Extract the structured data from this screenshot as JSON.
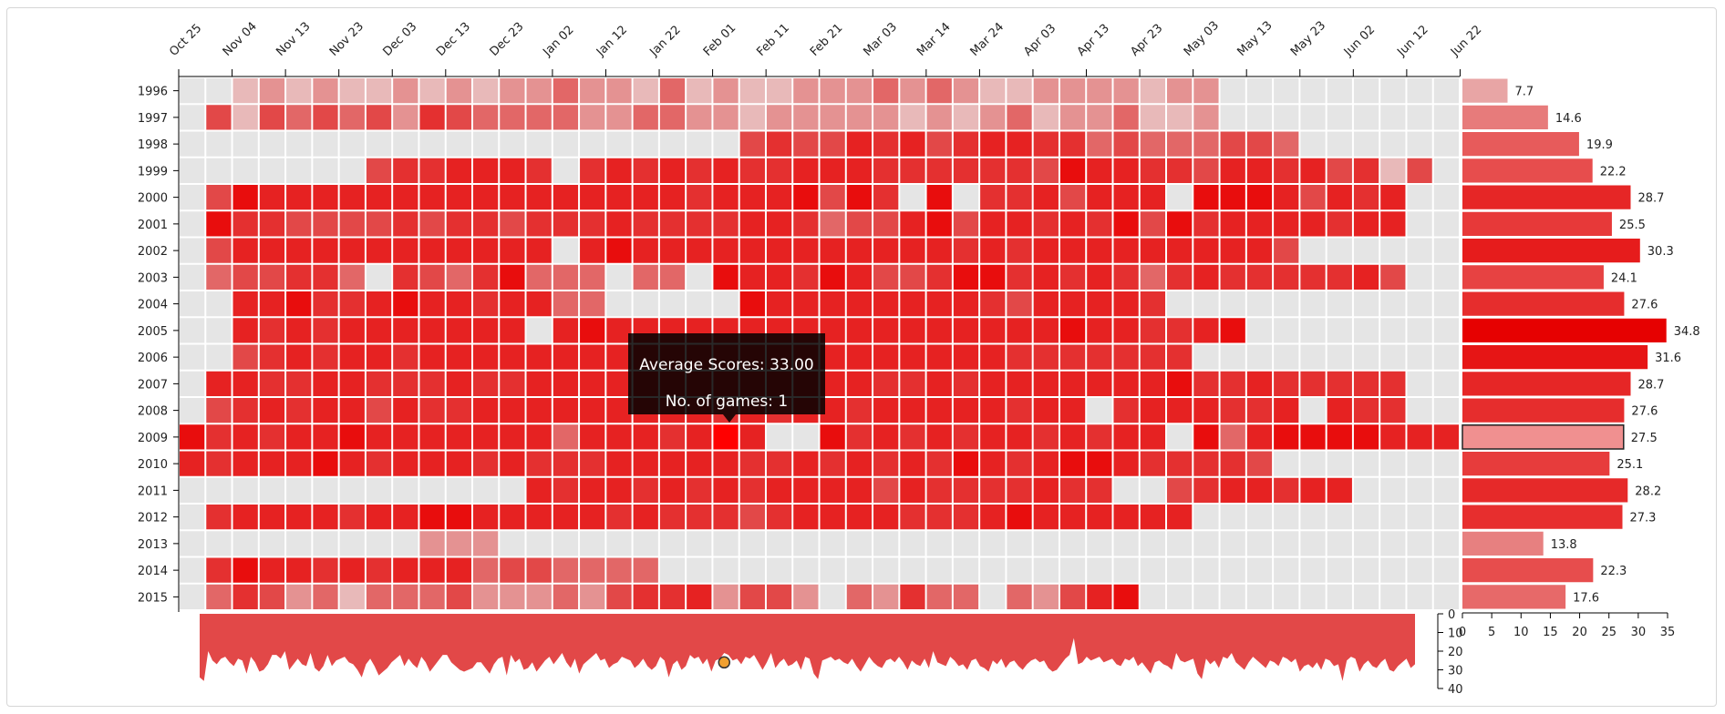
{
  "chart_data": {
    "type": "heatmap",
    "x_ticks": [
      "Oct 25",
      "Nov 04",
      "Nov 13",
      "Nov 23",
      "Dec 03",
      "Dec 13",
      "Dec 23",
      "Jan 02",
      "Jan 12",
      "Jan 22",
      "Feb 01",
      "Feb 11",
      "Feb 21",
      "Mar 03",
      "Mar 14",
      "Mar 24",
      "Apr 03",
      "Apr 13",
      "Apr 23",
      "May 03",
      "May 13",
      "May 23",
      "Jun 02",
      "Jun 12",
      "Jun 22"
    ],
    "years": [
      "1996",
      "1997",
      "1998",
      "1999",
      "2000",
      "2001",
      "2002",
      "2003",
      "2004",
      "2005",
      "2006",
      "2007",
      "2008",
      "2009",
      "2010",
      "2011",
      "2012",
      "2013",
      "2014",
      "2015"
    ],
    "weeks_per_row": 48,
    "max_score": 35,
    "empty_color": "#e5e5e5",
    "cell_colors": [
      "#e5e5e5",
      "#e8b9b9",
      "#e49292",
      "#e26767",
      "#e24848",
      "#e43030",
      "#e62222",
      "#e80d0d"
    ],
    "rows": [
      {
        "cells": "001212112121223221312112223232112222122000000000",
        "avg": 7.7
      },
      {
        "cells": "041434342543333223322122222121231223112000000000",
        "avg": 14.6
      },
      {
        "cells": "000000000000000000000454465645665534333443000000",
        "avg": 19.9
      },
      {
        "cells": "000000045566650565656556665555554766554665645140",
        "avg": 22.2
      },
      {
        "cells": "047666666666666666656667475070556466607776465600",
        "avg": 28.7
      },
      {
        "cells": "075544445455455565555665344674665657475666656600",
        "avg": 25.5
      },
      {
        "cells": "046666666666660676666666666665656666666664000000",
        "avg": 30.3
      },
      {
        "cells": "034455305435733303307665764457756565356555556400",
        "avg": 24.1
      },
      {
        "cells": "006675567665663300000766666666546666500000000000",
        "avg": 27.6
      },
      {
        "cells": "006565666666606766666666666666666766556700000000",
        "avg": 34.8
      },
      {
        "cells": "004565665666666666666666666666655555550000000000",
        "avg": 31.6
      },
      {
        "cells": "066556655565566666666666665565666666675565555500",
        "avg": 28.7
      },
      {
        "cells": "045656646556666666665656656666656605666556065500",
        "avg": 27.6
      },
      {
        "cells": "756566766666663666566600756565665656607367777666",
        "avg": 27.5
      },
      {
        "cells": "656667656665655566666556565657656776555540000000",
        "avg": 25.1
      },
      {
        "cells": "000000000000065665656566664655556550045665660000",
        "avg": 28.2
      },
      {
        "cells": "056666566776666656555456666555676666660000000000",
        "avg": 27.3
      },
      {
        "cells": "000000000222000000000000000000000000000000000000",
        "avg": 13.8
      },
      {
        "cells": "057665656663443333000000000000000000000000000000",
        "avg": 22.3
      },
      {
        "cells": "035423133342223245562442032533032467000000000000",
        "avg": 17.6
      }
    ],
    "highlighted_year": "2009",
    "highlighted_bar_color": "#f09090",
    "selected_cell_color": "#ff0000",
    "bar_axis": {
      "ticks": [
        0,
        5,
        10,
        15,
        20,
        25,
        30,
        35
      ],
      "max": 35
    },
    "bar_color_scale": {
      "low": "#e8b5b5",
      "high": "#e60000"
    },
    "area_color": "#e24848",
    "area_axis": {
      "ticks": [
        0,
        10,
        20,
        30,
        40
      ],
      "max": 40
    },
    "area_values": [
      34,
      36,
      20,
      25,
      27,
      24,
      23,
      26,
      28,
      24,
      25,
      32,
      23,
      26,
      31,
      30,
      27,
      22,
      22,
      24,
      20,
      30,
      27,
      24,
      27,
      28,
      21,
      29,
      31,
      28,
      22,
      28,
      25,
      24,
      23,
      26,
      27,
      30,
      34,
      27,
      24,
      28,
      33,
      31,
      29,
      26,
      24,
      22,
      28,
      24,
      27,
      29,
      23,
      26,
      31,
      28,
      25,
      22,
      22,
      26,
      28,
      30,
      31,
      30,
      29,
      26,
      26,
      29,
      32,
      27,
      24,
      23,
      33,
      22,
      26,
      24,
      30,
      29,
      26,
      31,
      28,
      25,
      23,
      27,
      24,
      21,
      26,
      29,
      24,
      32,
      27,
      25,
      23,
      21,
      25,
      24,
      29,
      27,
      26,
      23,
      24,
      25,
      29,
      27,
      24,
      28,
      30,
      28,
      23,
      25,
      34,
      27,
      25,
      30,
      28,
      22,
      24,
      23,
      27,
      24,
      31,
      25,
      24,
      21,
      22,
      25,
      24,
      27,
      23,
      24,
      22,
      26,
      30,
      26,
      21,
      29,
      26,
      24,
      28,
      27,
      25,
      30,
      23,
      24,
      32,
      35,
      25,
      24,
      23,
      25,
      24,
      26,
      27,
      24,
      28,
      31,
      27,
      23,
      26,
      28,
      29,
      25,
      24,
      26,
      23,
      26,
      30,
      25,
      27,
      28,
      24,
      29,
      20,
      26,
      27,
      28,
      23,
      25,
      28,
      27,
      30,
      25,
      24,
      28,
      29,
      31,
      25,
      27,
      24,
      29,
      26,
      25,
      28,
      30,
      27,
      25,
      24,
      26,
      25,
      29,
      31,
      30,
      27,
      24,
      22,
      13,
      27,
      26,
      23,
      25,
      24,
      23,
      26,
      25,
      24,
      27,
      28,
      24,
      25,
      23,
      28,
      26,
      29,
      32,
      26,
      25,
      27,
      28,
      30,
      21,
      25,
      26,
      25,
      24,
      32,
      35,
      24,
      27,
      25,
      29,
      23,
      24,
      21,
      26,
      28,
      30,
      26,
      23,
      25,
      27,
      29,
      25,
      26,
      28,
      23,
      24,
      26,
      24,
      31,
      28,
      27,
      29,
      26,
      30,
      24,
      25,
      28,
      27,
      36,
      25,
      23,
      24,
      31,
      27,
      25,
      28,
      29,
      26,
      24,
      30,
      31,
      28,
      26,
      24,
      29,
      27
    ],
    "area_marker_value": 26
  },
  "tooltip": {
    "line1": "Average Scores: 33.00",
    "line2": "No. of games: 1"
  }
}
